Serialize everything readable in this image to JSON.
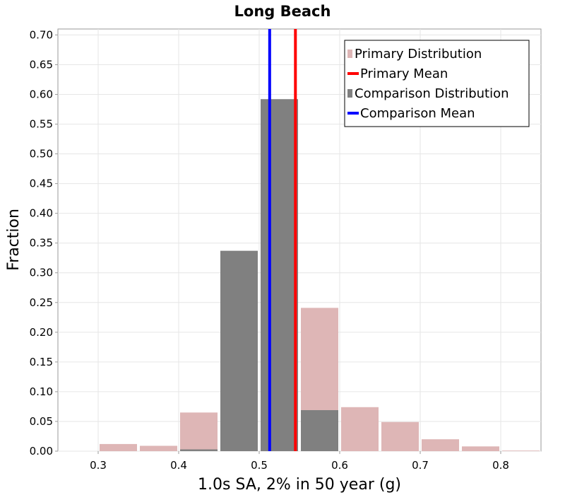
{
  "chart_data": {
    "type": "bar",
    "title": "Long Beach",
    "xlabel": "1.0s SA, 2% in 50 year (g)",
    "ylabel": "Fraction",
    "xlim": [
      0.25,
      0.85
    ],
    "ylim": [
      0,
      0.71
    ],
    "xticks": [
      "0.3",
      "0.4",
      "0.5",
      "0.6",
      "0.7",
      "0.8"
    ],
    "yticks": [
      "0.00",
      "0.05",
      "0.10",
      "0.15",
      "0.20",
      "0.25",
      "0.30",
      "0.35",
      "0.40",
      "0.45",
      "0.50",
      "0.55",
      "0.60",
      "0.65",
      "0.70"
    ],
    "bin_width": 0.05,
    "grid": true,
    "legend_position": "top-right",
    "series": [
      {
        "name": "Primary Distribution",
        "kind": "histogram",
        "color": "#deb6b6",
        "bin_centers": [
          0.325,
          0.375,
          0.425,
          0.475,
          0.525,
          0.575,
          0.625,
          0.675,
          0.725,
          0.775,
          0.825
        ],
        "values": [
          0.012,
          0.009,
          0.065,
          0.0,
          0.0,
          0.241,
          0.074,
          0.049,
          0.02,
          0.008,
          0.001
        ]
      },
      {
        "name": "Comparison Distribution",
        "kind": "histogram",
        "color": "#808080",
        "bin_centers": [
          0.425,
          0.475,
          0.525,
          0.575
        ],
        "values": [
          0.003,
          0.337,
          0.592,
          0.069
        ]
      },
      {
        "name": "Primary Mean",
        "kind": "vline",
        "color": "#ff0000",
        "x": 0.545
      },
      {
        "name": "Comparison Mean",
        "kind": "vline",
        "color": "#0000ff",
        "x": 0.513
      }
    ]
  }
}
